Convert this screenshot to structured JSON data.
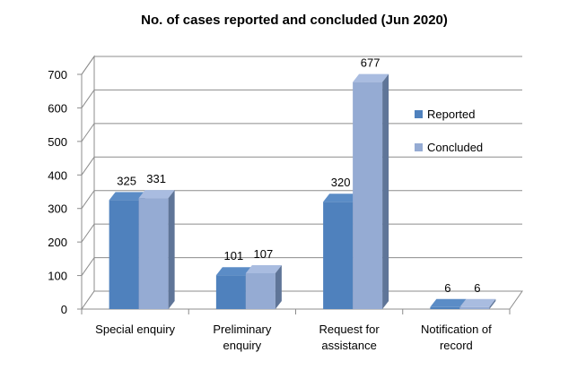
{
  "chart_data": {
    "type": "bar",
    "title": "No. of cases reported and concluded (Jun 2020)",
    "categories": [
      [
        "Special enquiry"
      ],
      [
        "Preliminary",
        "enquiry"
      ],
      [
        "Request for",
        "assistance"
      ],
      [
        "Notification of",
        "record"
      ]
    ],
    "series": [
      {
        "name": "Reported",
        "values": [
          325,
          101,
          320,
          6
        ]
      },
      {
        "name": "Concluded",
        "values": [
          331,
          107,
          677,
          6
        ]
      }
    ],
    "yticks": [
      "0",
      "100",
      "200",
      "300",
      "400",
      "500",
      "600",
      "700"
    ],
    "ylim": [
      0,
      700
    ],
    "grid": true,
    "legend": "right",
    "colors": {
      "reported": "#4F81BD",
      "concluded": "#95ABD3"
    }
  }
}
